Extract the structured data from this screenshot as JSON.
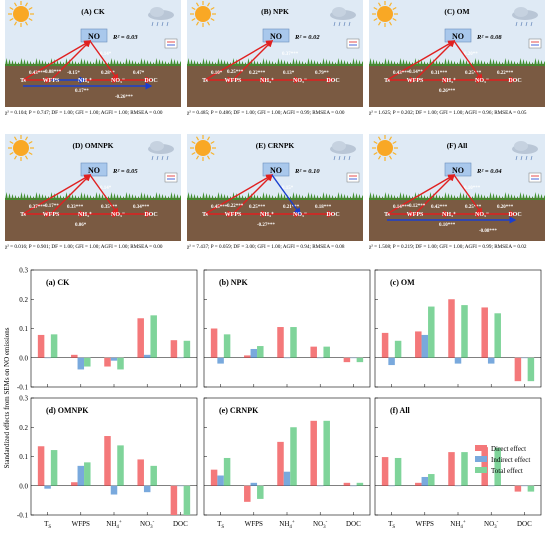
{
  "colors": {
    "sky": "#dfeaf5",
    "soil": "#7a5a42",
    "grass": "#3f8f2e",
    "no_box": "#a9c8ec",
    "positive_path": "#e02020",
    "negative_path": "#1a3fd0",
    "direct": "#f4787a",
    "indirect": "#79a9dd",
    "total": "#7fd49a"
  },
  "sem": {
    "node_labels": {
      "no": "NO",
      "ts": "Ts",
      "wfps": "WFPS",
      "nh4": "NH₄⁺",
      "no3": "NO₃⁻",
      "doc": "DOC"
    },
    "icons": {
      "sun": "sun-icon",
      "cloud": "rain-cloud-icon",
      "legend": "path-legend-icon"
    },
    "panels": [
      {
        "title": "(A) CK",
        "r2": "R² = 0.03",
        "fit": "χ² = 0.104; P = 0.747; DF = 1.00; GFI = 1.00; AGFI = 1.00; RMSEA = 0.00",
        "paths": [
          {
            "label": "0.14*",
            "sign": "+"
          },
          {
            "label": "0.08***",
            "sign": "+"
          },
          {
            "label": "0.43***",
            "sign": "+"
          },
          {
            "label": "-0.15*",
            "sign": "-"
          },
          {
            "label": "0.28**",
            "sign": "+"
          },
          {
            "label": "0.47*",
            "sign": "+"
          },
          {
            "label": "0.17**",
            "sign": "+"
          },
          {
            "label": "-0.26***",
            "sign": "-"
          }
        ]
      },
      {
        "title": "(B) NPK",
        "r2": "R² = 0.02",
        "fit": "χ² = 0.485; P = 0.486; DF = 1.00; GFI = 1.00; AGFI = 0.99; RMSEA = 0.00",
        "paths": [
          {
            "label": "0.37***",
            "sign": "+"
          },
          {
            "label": "0.25***",
            "sign": "+"
          },
          {
            "label": "0.10*",
            "sign": "+"
          },
          {
            "label": "0.22***",
            "sign": "+"
          },
          {
            "label": "0.13*",
            "sign": "+"
          },
          {
            "label": "0.79**",
            "sign": "+"
          }
        ]
      },
      {
        "title": "(C) OM",
        "r2": "R² = 0.08",
        "fit": "χ² = 1.625; P = 0.202; DF = 1.00; GFI = 1.00; AGFI = 0.96; RMSEA = 0.05",
        "paths": [
          {
            "label": "0.20**",
            "sign": "+"
          },
          {
            "label": "0.14**",
            "sign": "+"
          },
          {
            "label": "0.43***",
            "sign": "+"
          },
          {
            "label": "0.31***",
            "sign": "+"
          },
          {
            "label": "0.25***",
            "sign": "+"
          },
          {
            "label": "0.22***",
            "sign": "+"
          },
          {
            "label": "0.26***",
            "sign": "+"
          }
        ]
      },
      {
        "title": "(D) OMNPK",
        "r2": "R² = 0.05",
        "fit": "χ² = 0.016; P = 0.901; DF = 1.00; GFI = 1.00; AGFI = 1.00; RMSEA = 0.00",
        "paths": [
          {
            "label": "0.14*",
            "sign": "+"
          },
          {
            "label": "0.17**",
            "sign": "+"
          },
          {
            "label": "0.37***",
            "sign": "+"
          },
          {
            "label": "0.33***",
            "sign": "+"
          },
          {
            "label": "0.35***",
            "sign": "+"
          },
          {
            "label": "0.34***",
            "sign": "+"
          },
          {
            "label": "0.06*",
            "sign": "+"
          }
        ]
      },
      {
        "title": "(E) CRNPK",
        "r2": "R² = 0.10",
        "fit": "χ² = 7.437; P = 0.059; DF = 3.00; GFI = 1.00; AGFI = 0.94; RMSEA = 0.08",
        "paths": [
          {
            "label": "0.15*",
            "sign": "+"
          },
          {
            "label": "0.22***",
            "sign": "+"
          },
          {
            "label": "0.45***",
            "sign": "+"
          },
          {
            "label": "0.25***",
            "sign": "+"
          },
          {
            "label": "0.21***",
            "sign": "+"
          },
          {
            "label": "0.18***",
            "sign": "+"
          },
          {
            "label": "-0.27***",
            "sign": "-"
          }
        ]
      },
      {
        "title": "(F) All",
        "r2": "R² = 0.04",
        "fit": "χ² = 1.508; P = 0.219; DF = 1.00; GFI = 1.00; AGFI = 0.99; RMSEA = 0.02",
        "paths": [
          {
            "label": "0.10***",
            "sign": "+"
          },
          {
            "label": "0.12***",
            "sign": "+"
          },
          {
            "label": "0.14***",
            "sign": "+"
          },
          {
            "label": "0.42***",
            "sign": "+"
          },
          {
            "label": "0.25***",
            "sign": "+"
          },
          {
            "label": "0.20***",
            "sign": "+"
          },
          {
            "label": "0.10***",
            "sign": "+"
          },
          {
            "label": "-0.08***",
            "sign": "-"
          }
        ]
      }
    ]
  },
  "chart_data": {
    "type": "bar",
    "ylabel": "Standardized effects from SEMs on NO emissions",
    "ylim": [
      -0.1,
      0.3
    ],
    "yticks": [
      -0.1,
      0.0,
      0.1,
      0.2,
      0.3
    ],
    "categories": [
      "Ts",
      "WFPS",
      "NH4+",
      "NO3-",
      "DOC"
    ],
    "legend": {
      "placement": "right, in panel (f)",
      "entries": [
        "Direct effect",
        "Indirect effect",
        "Total effect"
      ]
    },
    "panels": [
      {
        "title": "(a) CK",
        "series": [
          {
            "name": "Direct effect",
            "values": [
              0.078,
              0.01,
              -0.03,
              0.135,
              0.06
            ]
          },
          {
            "name": "Indirect effect",
            "values": [
              0.0,
              -0.04,
              -0.01,
              0.01,
              0.0
            ]
          },
          {
            "name": "Total effect",
            "values": [
              0.08,
              -0.03,
              -0.04,
              0.145,
              0.058
            ]
          }
        ]
      },
      {
        "title": "(b) NPK",
        "series": [
          {
            "name": "Direct effect",
            "values": [
              0.1,
              0.008,
              0.105,
              0.038,
              -0.015
            ]
          },
          {
            "name": "Indirect effect",
            "values": [
              -0.02,
              0.03,
              0.0,
              0.0,
              0.0
            ]
          },
          {
            "name": "Total effect",
            "values": [
              0.08,
              0.04,
              0.105,
              0.038,
              -0.015
            ]
          }
        ]
      },
      {
        "title": "(c) OM",
        "series": [
          {
            "name": "Direct effect",
            "values": [
              0.085,
              0.09,
              0.2,
              0.172,
              -0.08
            ]
          },
          {
            "name": "Indirect effect",
            "values": [
              -0.025,
              0.078,
              -0.02,
              -0.02,
              0.0
            ]
          },
          {
            "name": "Total effect",
            "values": [
              0.058,
              0.175,
              0.18,
              0.152,
              -0.08
            ]
          }
        ]
      },
      {
        "title": "(d) OMNPK",
        "series": [
          {
            "name": "Direct effect",
            "values": [
              0.135,
              0.012,
              0.17,
              0.09,
              -0.1
            ]
          },
          {
            "name": "Indirect effect",
            "values": [
              -0.01,
              0.068,
              -0.03,
              -0.022,
              0.0
            ]
          },
          {
            "name": "Total effect",
            "values": [
              0.122,
              0.08,
              0.138,
              0.068,
              -0.1
            ]
          }
        ]
      },
      {
        "title": "(e) CRNPK",
        "series": [
          {
            "name": "Direct effect",
            "values": [
              0.055,
              -0.055,
              0.15,
              0.222,
              0.01
            ]
          },
          {
            "name": "Indirect effect",
            "values": [
              0.035,
              0.01,
              0.048,
              0.0,
              0.0
            ]
          },
          {
            "name": "Total effect",
            "values": [
              0.095,
              -0.045,
              0.2,
              0.222,
              0.01
            ]
          }
        ]
      },
      {
        "title": "(f) All",
        "series": [
          {
            "name": "Direct effect",
            "values": [
              0.098,
              0.01,
              0.115,
              0.132,
              -0.02
            ]
          },
          {
            "name": "Indirect effect",
            "values": [
              0.0,
              0.03,
              0.0,
              0.0,
              0.0
            ]
          },
          {
            "name": "Total effect",
            "values": [
              0.095,
              0.04,
              0.115,
              0.13,
              -0.02
            ]
          }
        ]
      }
    ]
  }
}
